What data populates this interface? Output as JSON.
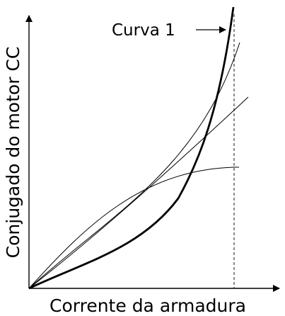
{
  "diagram": {
    "x_axis_label": "Corrente da armadura",
    "y_axis_label": "Conjugado do motor CC",
    "curve_label": "Curva 1",
    "curves": [
      {
        "id": "curva-1",
        "label_ref": "curve_label",
        "emphasis": "bold"
      },
      {
        "id": "curve-upper-thin",
        "emphasis": "thin"
      },
      {
        "id": "curve-linear",
        "emphasis": "thin"
      },
      {
        "id": "curve-saturating",
        "emphasis": "thin"
      }
    ],
    "limit_line": {
      "style": "dashed"
    },
    "colors": {
      "ink": "#000000",
      "background": "#ffffff"
    }
  }
}
